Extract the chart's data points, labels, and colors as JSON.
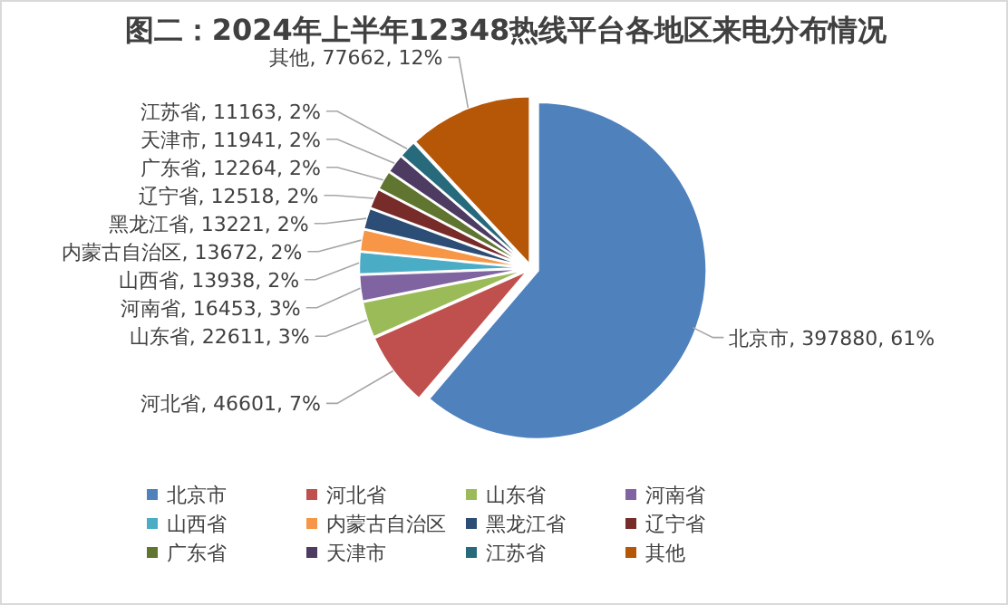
{
  "chart_data": {
    "type": "pie",
    "title": "图二：2024年上半年12348热线平台各地区来电分布情况",
    "categories": [
      "北京市",
      "河北省",
      "山东省",
      "河南省",
      "山西省",
      "内蒙古自治区",
      "黑龙江省",
      "辽宁省",
      "广东省",
      "天津市",
      "江苏省",
      "其他"
    ],
    "values": [
      397880,
      46601,
      22611,
      16453,
      13938,
      13672,
      13221,
      12518,
      12264,
      11941,
      11163,
      77662
    ],
    "value_labels": [
      "北京市, 397880, 61%",
      "河北省, 46601, 7%",
      "山东省, 22611, 3%",
      "河南省, 16453, 3%",
      "山西省, 13938, 2%",
      "内蒙古自治区, 13672, 2%",
      "黑龙江省, 13221, 2%",
      "辽宁省, 12518, 2%",
      "广东省, 12264, 2%",
      "天津市, 11941, 2%",
      "江苏省, 11163, 2%",
      "其他, 77662, 12%"
    ],
    "colors": [
      "#4f81bd",
      "#c0504d",
      "#9bbb59",
      "#8064a2",
      "#4bacc6",
      "#f79646",
      "#2c4d75",
      "#772c2a",
      "#5f7530",
      "#4d3b62",
      "#276a7c",
      "#b65708"
    ],
    "legend": "bottom"
  }
}
